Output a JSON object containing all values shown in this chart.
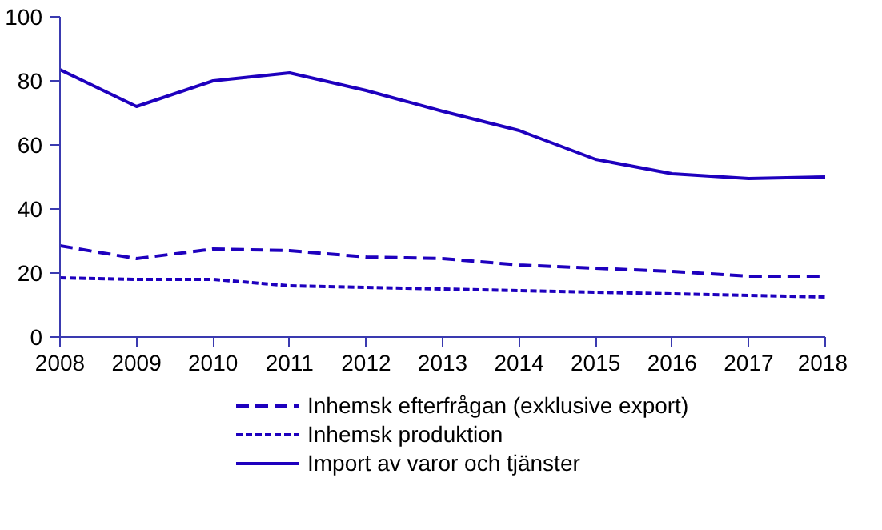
{
  "chart_data": {
    "type": "line",
    "x": [
      2008,
      2009,
      2010,
      2011,
      2012,
      2013,
      2014,
      2015,
      2016,
      2017,
      2018
    ],
    "xlim": [
      2008,
      2018
    ],
    "xticks": [
      2008,
      2009,
      2010,
      2011,
      2012,
      2013,
      2014,
      2015,
      2016,
      2017,
      2018
    ],
    "ylim": [
      0,
      100
    ],
    "yticks": [
      0,
      20,
      40,
      60,
      80,
      100
    ],
    "grid": false,
    "legend": "bottom",
    "series": [
      {
        "name": "Inhemsk efterfrågan (exklusive export)",
        "color": "#1e00be",
        "line_style": "dashed",
        "values": [
          28.5,
          24.5,
          27.5,
          27,
          25,
          24.5,
          22.5,
          21.5,
          20.5,
          19,
          19
        ]
      },
      {
        "name": "Inhemsk produktion",
        "color": "#1e00be",
        "line_style": "dotted",
        "values": [
          18.5,
          18,
          18,
          16,
          15.5,
          15,
          14.5,
          14,
          13.5,
          13,
          12.5
        ]
      },
      {
        "name": "Import av varor och tjänster",
        "color": "#1e00be",
        "line_style": "solid",
        "values": [
          83.5,
          72,
          80,
          82.5,
          77,
          70.5,
          64.5,
          55.5,
          51,
          49.5,
          50
        ]
      }
    ]
  }
}
